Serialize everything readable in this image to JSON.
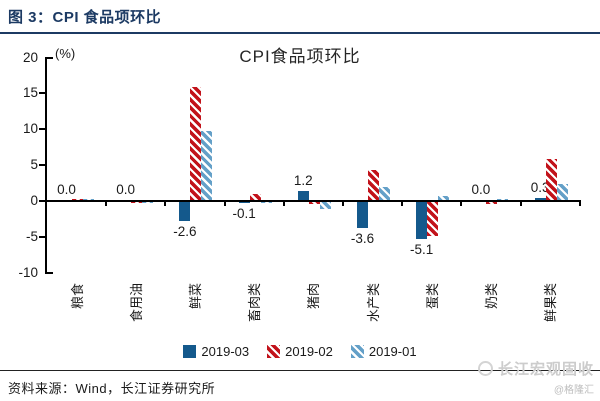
{
  "header": {
    "title": "图 3：CPI 食品项环比"
  },
  "chart_data": {
    "type": "bar",
    "title": "CPI食品项环比",
    "unit_label": "(%)",
    "categories": [
      "粮食",
      "食用油",
      "鲜菜",
      "畜肉类",
      "猪肉",
      "水产类",
      "蛋类",
      "奶类",
      "鲜果类"
    ],
    "series": [
      {
        "name": "2019-03",
        "color": "#14598c",
        "pattern": "solid",
        "values": [
          0.0,
          0.0,
          -2.6,
          -0.1,
          1.2,
          -3.6,
          -5.1,
          0.0,
          0.3
        ]
      },
      {
        "name": "2019-02",
        "color": "#c2131b",
        "pattern": "hatch",
        "values": [
          0.2,
          -0.1,
          15.8,
          0.9,
          -0.3,
          4.2,
          -4.8,
          -0.3,
          5.7
        ]
      },
      {
        "name": "2019-01",
        "color": "#64a0c8",
        "pattern": "hatch",
        "values": [
          0.1,
          -0.2,
          9.6,
          -0.2,
          -1.0,
          1.8,
          0.5,
          0.2,
          2.3
        ]
      }
    ],
    "bar_labels": [
      "0.0",
      "0.0",
      "-2.6",
      "-0.1",
      "1.2",
      "-3.6",
      "-5.1",
      "0.0",
      "0.3"
    ],
    "bar_labels_series": "2019-03",
    "ylim": [
      -10,
      20
    ],
    "yticks": [
      20,
      15,
      10,
      5,
      0,
      -5,
      -10
    ],
    "grid": false,
    "legend_position": "bottom"
  },
  "footer": {
    "source": "资料来源：Wind，长江证券研究所"
  },
  "watermark": {
    "brand": "长江宏观固收",
    "handle": "@格隆汇"
  }
}
